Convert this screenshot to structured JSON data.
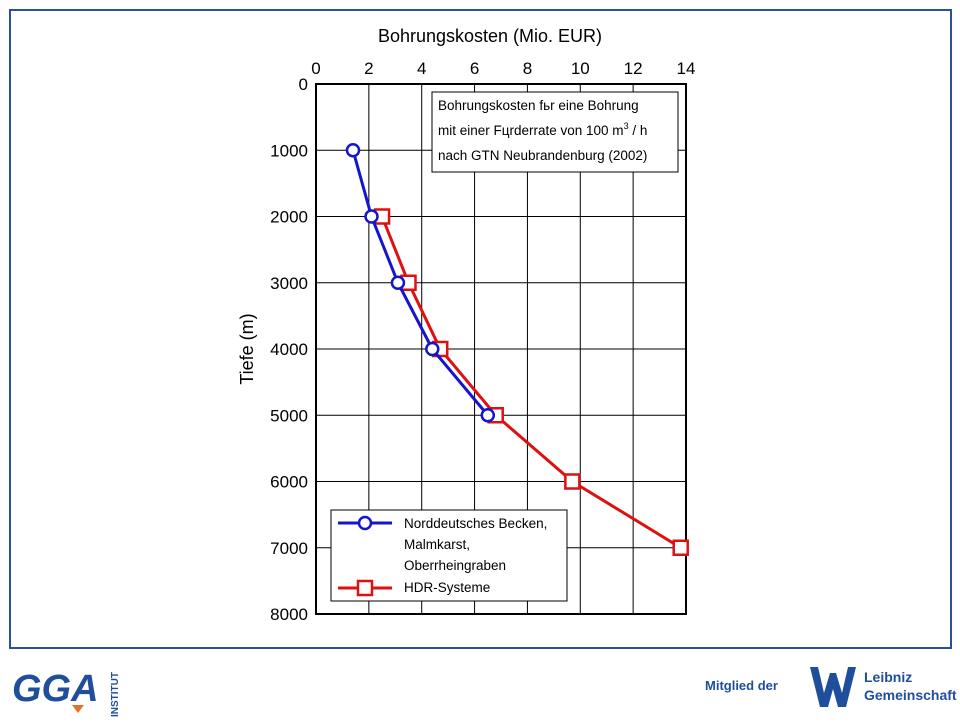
{
  "chart_data": {
    "type": "line",
    "title": "Bohrungskosten  (Mio. EUR)",
    "xlabel": "Bohrungskosten  (Mio. EUR)",
    "ylabel": "Tiefe  (m)",
    "xlim": [
      0,
      14
    ],
    "ylim": [
      0,
      8000
    ],
    "x_ticks": [
      0,
      2,
      4,
      6,
      8,
      10,
      12,
      14
    ],
    "y_ticks": [
      0,
      1000,
      2000,
      3000,
      4000,
      5000,
      6000,
      7000,
      8000
    ],
    "x_axis_position": "top",
    "y_inverted": true,
    "grid": true,
    "annotation": {
      "line1": "Bohrungskosten fьr eine Bohrung",
      "line2_pre": "mit einer Fцrderrate von 100 m",
      "line2_sup": "3",
      "line2_post": " / h",
      "line3": "nach GTN Neubrandenburg (2002)"
    },
    "legend_position": "bottom-left",
    "series": [
      {
        "name": "Norddeutsches Becken, Malmkarst, Oberrheingraben",
        "legend_lines": [
          "Norddeutsches Becken,",
          "Malmkarst,",
          "Oberrheingraben"
        ],
        "color": "#1515cc",
        "marker": "circle",
        "x": [
          1.4,
          2.1,
          3.1,
          4.4,
          6.5
        ],
        "y": [
          1000,
          2000,
          3000,
          4000,
          5000
        ]
      },
      {
        "name": "HDR-Systeme",
        "legend_lines": [
          "HDR-Systeme"
        ],
        "color": "#dd1111",
        "marker": "square",
        "x": [
          2.5,
          3.5,
          4.7,
          6.8,
          9.7,
          13.8
        ],
        "y": [
          2000,
          3000,
          4000,
          5000,
          6000,
          7000
        ]
      }
    ]
  },
  "footer": {
    "logo_text": "GGA",
    "logo_vertical": "INSTITUT",
    "member_label": "Mitglied der",
    "leibniz_line1": "Leibniz",
    "leibniz_line2": "Gemeinschaft"
  },
  "colors": {
    "frame": "#2b4f9c",
    "logo_blue": "#1f4e9c",
    "logo_orange": "#e8702a",
    "leibniz_blue": "#1f4e9c"
  }
}
